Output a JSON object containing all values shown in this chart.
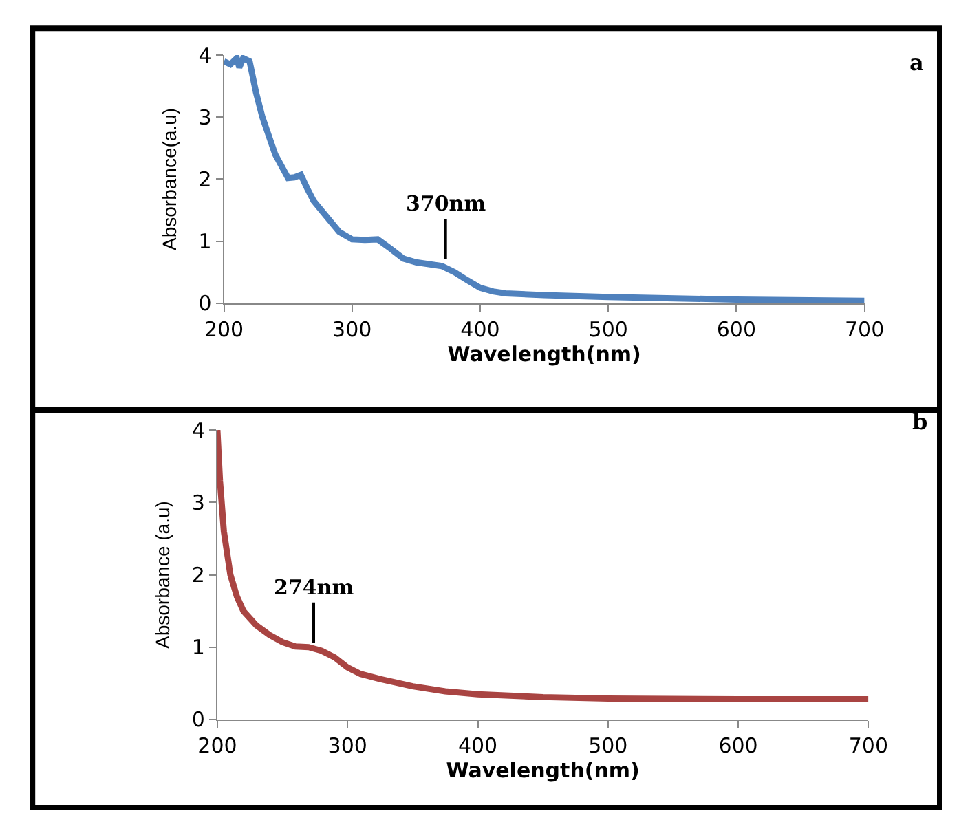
{
  "chart_data": [
    {
      "type": "line",
      "xlabel": "Wavelength(nm)",
      "ylabel": "Absorbance(a.u)",
      "xlim": [
        200,
        700
      ],
      "ylim": [
        0,
        4
      ],
      "xticks": [
        200,
        300,
        400,
        500,
        600,
        700
      ],
      "yticks": [
        0,
        1,
        2,
        3,
        4
      ],
      "marker": "none",
      "line_style": "solid",
      "annotations": [
        {
          "text": "370nm",
          "x": 373,
          "y": 0.62
        },
        "a"
      ],
      "series": [
        {
          "color": "#4f81bd",
          "x": [
            200,
            205,
            210,
            212,
            215,
            220,
            225,
            230,
            240,
            250,
            255,
            260,
            265,
            270,
            280,
            290,
            300,
            310,
            320,
            330,
            340,
            350,
            360,
            370,
            380,
            390,
            400,
            410,
            420,
            450,
            500,
            600,
            700
          ],
          "values": [
            3.9,
            3.85,
            3.95,
            3.8,
            3.95,
            3.9,
            3.4,
            3.0,
            2.4,
            2.02,
            2.03,
            2.07,
            1.85,
            1.65,
            1.4,
            1.15,
            1.03,
            1.02,
            1.03,
            0.88,
            0.72,
            0.66,
            0.63,
            0.6,
            0.5,
            0.37,
            0.25,
            0.19,
            0.16,
            0.13,
            0.1,
            0.06,
            0.04
          ]
        }
      ]
    },
    {
      "type": "line",
      "xlabel": "Wavelength(nm)",
      "ylabel": "Absorbance (a.u)",
      "xlim": [
        200,
        700
      ],
      "ylim": [
        0,
        4
      ],
      "xticks": [
        200,
        300,
        400,
        500,
        600,
        700
      ],
      "yticks": [
        0,
        1,
        2,
        3,
        4
      ],
      "marker": "none",
      "line_style": "solid",
      "annotations": [
        {
          "text": "274nm",
          "x": 274,
          "y": 0.98
        },
        "b"
      ],
      "series": [
        {
          "color": "#a94442",
          "x": [
            200,
            202,
            205,
            210,
            215,
            220,
            230,
            240,
            250,
            260,
            270,
            280,
            290,
            300,
            310,
            325,
            350,
            375,
            400,
            450,
            500,
            600,
            700
          ],
          "values": [
            4.0,
            3.3,
            2.6,
            2.0,
            1.7,
            1.5,
            1.3,
            1.17,
            1.07,
            1.01,
            1.0,
            0.95,
            0.86,
            0.72,
            0.63,
            0.56,
            0.46,
            0.39,
            0.35,
            0.31,
            0.29,
            0.28,
            0.28
          ]
        }
      ]
    }
  ]
}
